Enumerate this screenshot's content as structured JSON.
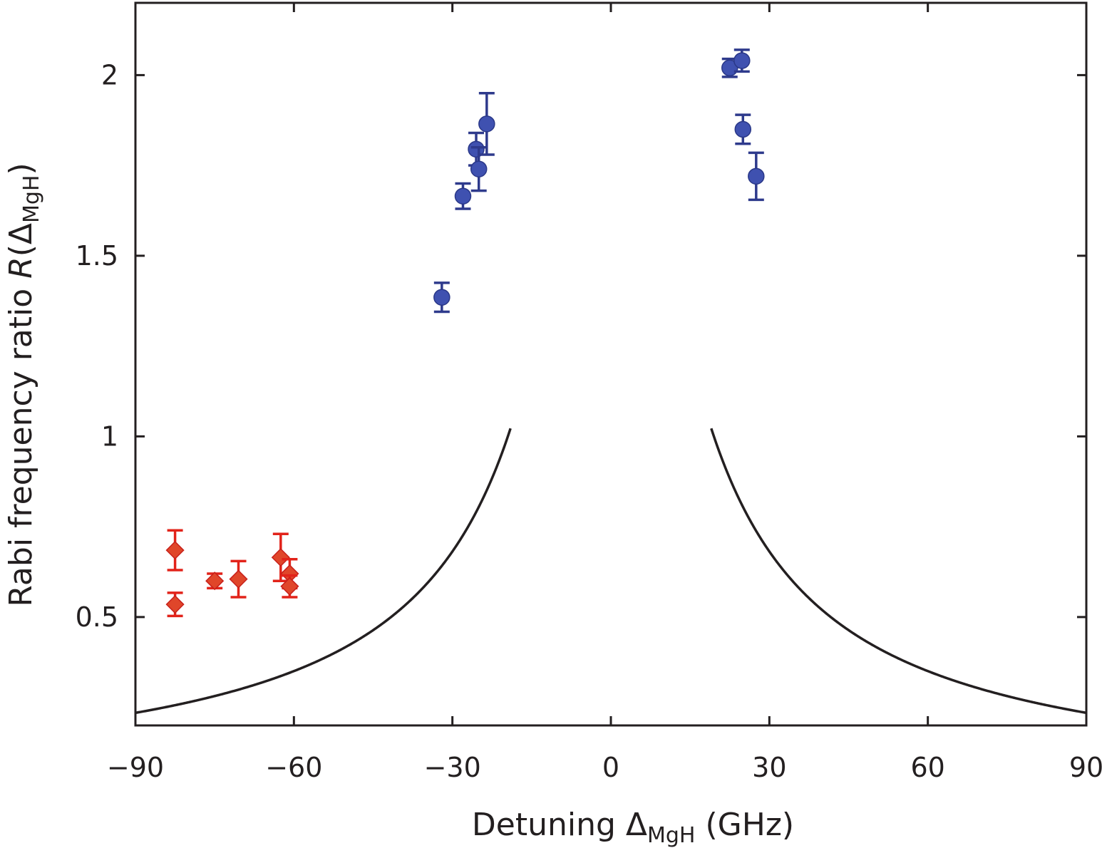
{
  "chart_data": {
    "type": "scatter",
    "xlabel": {
      "prefix": "Detuning ",
      "symbol": "Δ",
      "subscript": "MgH",
      "suffix": " (GHz)"
    },
    "ylabel": {
      "prefix": "Rabi frequency ratio ",
      "var": "R",
      "open": "(",
      "symbol": "Δ",
      "subscript": "MgH",
      "close": ")"
    },
    "xlim": [
      -90,
      90
    ],
    "ylim": [
      0.2,
      2.2
    ],
    "xticks": [
      -90,
      -60,
      -30,
      0,
      30,
      60,
      90
    ],
    "xtick_labels": [
      "−90",
      "−60",
      "−30",
      "0",
      "30",
      "60",
      "90"
    ],
    "yticks": [
      0.5,
      1,
      1.5,
      2
    ],
    "ytick_labels": [
      "0.5",
      "1",
      "1.5",
      "2"
    ],
    "grid": false,
    "colors": {
      "axis": "#231f20",
      "curve": "#231f20",
      "red": "#e2231a",
      "red_fill": "#e0462a",
      "blue": "#2e3a8c",
      "blue_fill": "#3f51b0"
    },
    "curve": {
      "model": "R = sqrt(a^2 + 1) / sqrt(a^2 + (Δ/Δ0)^2)",
      "a": 0.43,
      "delta0_ghz": 19.5
    },
    "series": [
      {
        "marker": "diamond",
        "color": "#e0462a",
        "points": [
          {
            "x": -82.5,
            "y": 0.685,
            "err": 0.055
          },
          {
            "x": -82.5,
            "y": 0.535,
            "err": 0.032
          },
          {
            "x": -75.0,
            "y": 0.6,
            "err": 0.02
          },
          {
            "x": -70.5,
            "y": 0.605,
            "err": 0.05
          },
          {
            "x": -62.5,
            "y": 0.665,
            "err": 0.065
          },
          {
            "x": -60.8,
            "y": 0.62,
            "err": 0.04
          },
          {
            "x": -60.8,
            "y": 0.585,
            "err": 0.03
          }
        ]
      },
      {
        "marker": "circle",
        "color": "#3f51b0",
        "points": [
          {
            "x": -32.0,
            "y": 1.385,
            "err": 0.04
          },
          {
            "x": -28.0,
            "y": 1.665,
            "err": 0.035
          },
          {
            "x": -25.5,
            "y": 1.795,
            "err": 0.045
          },
          {
            "x": -25.0,
            "y": 1.74,
            "err": 0.06
          },
          {
            "x": -23.5,
            "y": 1.865,
            "err": 0.085
          },
          {
            "x": 22.5,
            "y": 2.02,
            "err": 0.025
          },
          {
            "x": 24.8,
            "y": 2.04,
            "err": 0.03
          },
          {
            "x": 25.0,
            "y": 1.85,
            "err": 0.04
          },
          {
            "x": 27.5,
            "y": 1.72,
            "err": 0.065
          }
        ]
      }
    ]
  }
}
